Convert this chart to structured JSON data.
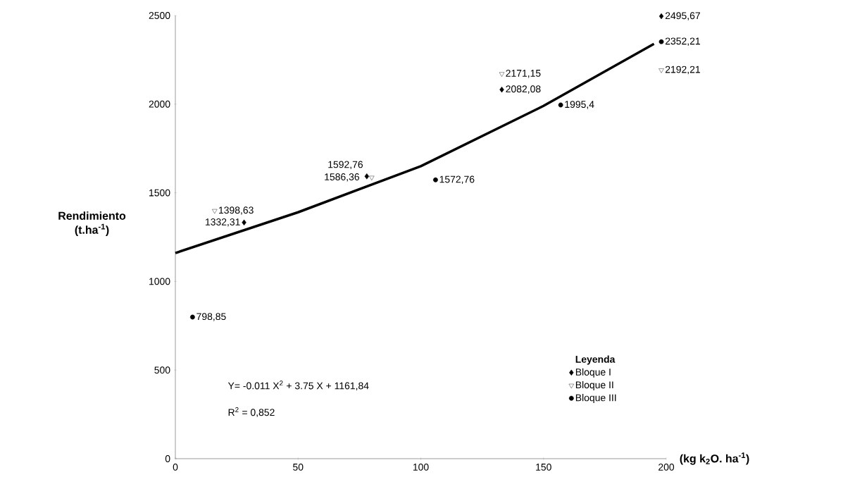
{
  "chart_data": {
    "type": "scatter",
    "xlabel": "(kg k$_{2}$O. ha$^{-1}$)",
    "ylabel": "Rendimiento (t.ha$^{-1}$)",
    "legend_title": "Leyenda",
    "xlim": [
      0,
      200
    ],
    "xticks": [
      0,
      50,
      100,
      150,
      200
    ],
    "ylim": [
      0,
      2500
    ],
    "yticks": [
      0,
      500,
      1000,
      1500,
      2000,
      2500
    ],
    "grid": false,
    "legend": "bottom right",
    "series": [
      {
        "name": "Bloque I",
        "color": "#000000",
        "marker": "diamond",
        "x": [
          28,
          78,
          133,
          198
        ],
        "values": [
          1332.31,
          1592.76,
          2082.08,
          2495.67
        ],
        "value_labels": [
          "1332,31",
          "1592,76",
          "2082,08",
          "2495,67"
        ]
      },
      {
        "name": "Bloque II",
        "color": "#000000",
        "marker": "triangle",
        "x": [
          16,
          80,
          133,
          198
        ],
        "values": [
          1398.63,
          1586.36,
          2171.15,
          2192.21
        ],
        "value_labels": [
          "1398,63",
          "1586,36",
          "2171,15",
          "2192,21"
        ]
      },
      {
        "name": "Bloque III",
        "color": "#000000",
        "marker": "circle",
        "x": [
          7,
          106,
          157,
          198
        ],
        "values": [
          798.85,
          1572.76,
          1995.4,
          2352.21
        ],
        "value_labels": [
          "798,85",
          "1572,76",
          "1995,4",
          "2352,21"
        ]
      },
      {
        "type": "line",
        "color": "#000000",
        "marker": "none",
        "x": [
          0,
          50,
          100,
          150,
          195
        ],
        "values": [
          1160,
          1390,
          1650,
          1990,
          2340
        ]
      }
    ],
    "annotations": [
      "Y= -0.011 X$^{2}$ + 3.75 X + 1161,84",
      "R$^{2}$ = 0,852"
    ]
  }
}
